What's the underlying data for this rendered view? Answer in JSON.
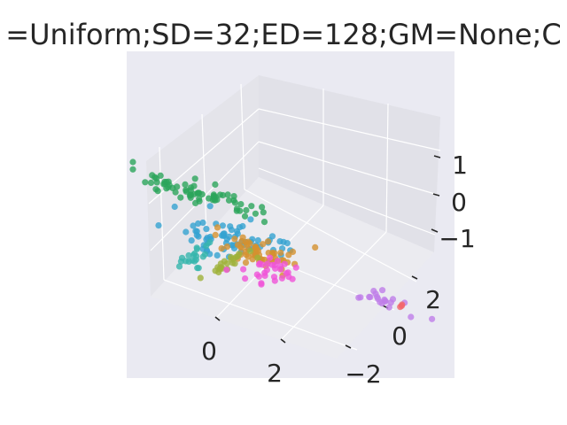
{
  "chart_data": {
    "type": "scatter",
    "title": "=Uniform;SD=32;ED=128;GM=None;C",
    "xlabel": "",
    "ylabel": "",
    "zlabel": "",
    "x_ticks": [
      "0",
      "2"
    ],
    "y_ticks": [
      "−2",
      "0",
      "2"
    ],
    "z_ticks": [
      "1",
      "0",
      "−1"
    ],
    "xlim": [
      -3.5,
      5.5
    ],
    "ylim": [
      -3.5,
      4.0
    ],
    "zlim": [
      -2.2,
      2.0
    ],
    "grid": true,
    "legend": "none",
    "series": [
      {
        "color": "#2ca55b",
        "center": [
          -2.2,
          -1.0,
          0.9
        ],
        "spread": [
          1.1,
          0.25,
          0.18
        ],
        "n": 70
      },
      {
        "color": "#35a3d1",
        "center": [
          -1.0,
          -0.5,
          -0.6
        ],
        "spread": [
          0.9,
          0.6,
          0.25
        ],
        "n": 70
      },
      {
        "color": "#d5912f",
        "center": [
          -0.2,
          -0.9,
          -1.3
        ],
        "spread": [
          0.6,
          0.4,
          0.2
        ],
        "n": 60
      },
      {
        "color": "#36b5ad",
        "center": [
          0.0,
          3.2,
          1.2
        ],
        "spread": [
          0.12,
          0.45,
          0.15
        ],
        "n": 20
      },
      {
        "color": "#9fb13a",
        "center": [
          0.4,
          2.0,
          0.3
        ],
        "spread": [
          0.12,
          0.6,
          0.12
        ],
        "n": 22
      },
      {
        "color": "#f054d8",
        "center": [
          1.0,
          0.7,
          -0.4
        ],
        "spread": [
          0.4,
          0.6,
          0.1
        ],
        "n": 30
      },
      {
        "color": "#bf7ee8",
        "center": [
          3.6,
          -0.9,
          -1.6
        ],
        "spread": [
          0.6,
          0.3,
          0.05
        ],
        "n": 20
      },
      {
        "color": "#f2666c",
        "center": [
          4.0,
          -1.1,
          -1.7
        ],
        "spread": [
          0.05,
          0.05,
          0.05
        ],
        "n": 3
      }
    ]
  }
}
